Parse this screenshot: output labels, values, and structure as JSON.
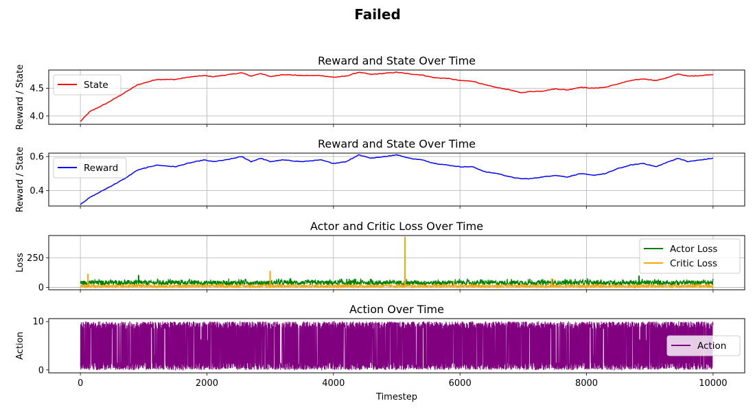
{
  "suptitle": "Failed",
  "x_label": "Timestep",
  "x_ticks": [
    0,
    2000,
    4000,
    6000,
    8000,
    10000
  ],
  "xlim": [
    -500,
    10500
  ],
  "chart_data": [
    {
      "type": "line",
      "title": "Reward and State Over Time",
      "ylabel": "Reward / State",
      "ylim": [
        3.85,
        4.83
      ],
      "yticks": [
        4.0,
        4.5
      ],
      "ytick_labels": [
        "4.0",
        "4.5"
      ],
      "grid": true,
      "legend": "upper-left",
      "series": [
        {
          "name": "State",
          "color": "#ff0000",
          "x": [
            0,
            150,
            400,
            700,
            900,
            1200,
            1500,
            1700,
            1950,
            2100,
            2300,
            2550,
            2700,
            2850,
            3000,
            3200,
            3500,
            3800,
            4000,
            4200,
            4400,
            4600,
            4800,
            5000,
            5200,
            5400,
            5600,
            5800,
            6000,
            6200,
            6400,
            6600,
            6800,
            6950,
            7100,
            7300,
            7500,
            7700,
            7900,
            8100,
            8300,
            8500,
            8700,
            8900,
            9100,
            9300,
            9450,
            9600,
            9800,
            10000
          ],
          "y": [
            3.9,
            4.08,
            4.22,
            4.42,
            4.56,
            4.66,
            4.66,
            4.7,
            4.73,
            4.71,
            4.74,
            4.78,
            4.72,
            4.77,
            4.71,
            4.75,
            4.73,
            4.73,
            4.7,
            4.72,
            4.79,
            4.75,
            4.77,
            4.79,
            4.76,
            4.74,
            4.69,
            4.68,
            4.64,
            4.63,
            4.56,
            4.51,
            4.47,
            4.42,
            4.44,
            4.45,
            4.49,
            4.47,
            4.52,
            4.5,
            4.52,
            4.58,
            4.64,
            4.67,
            4.64,
            4.7,
            4.76,
            4.72,
            4.73,
            4.75
          ]
        }
      ]
    },
    {
      "type": "line",
      "title": "Reward and State Over Time",
      "ylabel": "Reward / State",
      "ylim": [
        0.31,
        0.62
      ],
      "yticks": [
        0.4,
        0.6
      ],
      "ytick_labels": [
        "0.4",
        "0.6"
      ],
      "grid": true,
      "legend": "upper-left",
      "series": [
        {
          "name": "Reward",
          "color": "#0000ff",
          "x": [
            0,
            150,
            400,
            700,
            900,
            1200,
            1500,
            1700,
            1950,
            2100,
            2300,
            2550,
            2700,
            2850,
            3000,
            3200,
            3500,
            3800,
            4000,
            4200,
            4400,
            4600,
            4800,
            5000,
            5200,
            5400,
            5600,
            5800,
            6000,
            6200,
            6400,
            6600,
            6800,
            6950,
            7100,
            7300,
            7500,
            7700,
            7900,
            8100,
            8300,
            8500,
            8700,
            8900,
            9100,
            9300,
            9450,
            9600,
            9800,
            10000
          ],
          "y": [
            0.32,
            0.36,
            0.41,
            0.47,
            0.52,
            0.55,
            0.54,
            0.56,
            0.58,
            0.57,
            0.58,
            0.6,
            0.57,
            0.59,
            0.57,
            0.58,
            0.57,
            0.58,
            0.56,
            0.57,
            0.61,
            0.59,
            0.6,
            0.61,
            0.59,
            0.58,
            0.56,
            0.55,
            0.54,
            0.54,
            0.51,
            0.5,
            0.48,
            0.47,
            0.47,
            0.48,
            0.49,
            0.48,
            0.5,
            0.49,
            0.5,
            0.53,
            0.55,
            0.56,
            0.54,
            0.57,
            0.59,
            0.57,
            0.58,
            0.59
          ]
        }
      ]
    },
    {
      "type": "line",
      "title": "Actor and Critic Loss Over Time",
      "ylabel": "Loss",
      "ylim": [
        -20,
        440
      ],
      "yticks": [
        0,
        250
      ],
      "ytick_labels": [
        "0",
        "250"
      ],
      "grid": true,
      "legend": "upper-right",
      "series": [
        {
          "name": "Actor Loss",
          "color": "#008000",
          "x": [
            0,
            10000
          ],
          "y_range": [
            20,
            75
          ],
          "spikes": [
            {
              "x": 920,
              "y": 105
            },
            {
              "x": 8830,
              "y": 100
            }
          ]
        },
        {
          "name": "Critic Loss",
          "color": "#ffa500",
          "x": [
            0,
            10000
          ],
          "y_range": [
            0,
            30
          ],
          "spikes": [
            {
              "x": 120,
              "y": 115
            },
            {
              "x": 3000,
              "y": 140
            },
            {
              "x": 5130,
              "y": 430
            },
            {
              "x": 5900,
              "y": 55
            },
            {
              "x": 7450,
              "y": 75
            }
          ]
        }
      ]
    },
    {
      "type": "line",
      "title": "Action Over Time",
      "ylabel": "Action",
      "ylim": [
        -0.6,
        10.6
      ],
      "yticks": [
        0,
        10
      ],
      "ytick_labels": [
        "0",
        "10"
      ],
      "grid": false,
      "legend": "right",
      "series": [
        {
          "name": "Action",
          "color": "#800080",
          "x": [
            0,
            10000
          ],
          "y_range": [
            0,
            10
          ]
        }
      ]
    }
  ]
}
